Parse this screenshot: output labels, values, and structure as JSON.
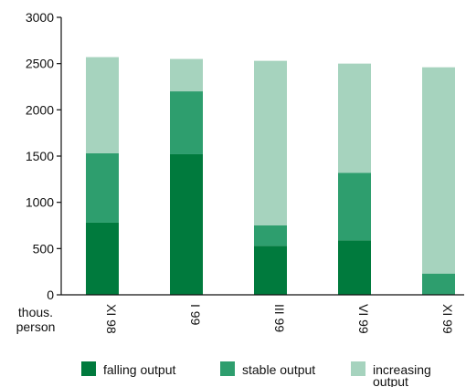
{
  "chart_data": {
    "type": "bar",
    "stacked": true,
    "title": "",
    "xlabel": "",
    "ylabel": "",
    "unit_label": [
      "thous.",
      "person"
    ],
    "ylim": [
      0,
      3000
    ],
    "yticks": [
      0,
      500,
      1000,
      1500,
      2000,
      2500,
      3000
    ],
    "categories": [
      "XI 98",
      "I 99",
      "III 99",
      "VI 99",
      "XI 99"
    ],
    "series": [
      {
        "name": "falling output",
        "color": "#007a3d",
        "values": [
          780,
          1520,
          530,
          590,
          0
        ]
      },
      {
        "name": "stable output",
        "color": "#2e9e6e",
        "values": [
          750,
          680,
          220,
          730,
          230
        ]
      },
      {
        "name": "increasing output",
        "color": "#a6d3be",
        "values": [
          1040,
          350,
          1780,
          1180,
          2230
        ]
      }
    ],
    "legend_position": "bottom",
    "grid": false,
    "legend_labels": [
      [
        "falling output"
      ],
      [
        "stable output"
      ],
      [
        "increasing",
        "output"
      ]
    ]
  }
}
